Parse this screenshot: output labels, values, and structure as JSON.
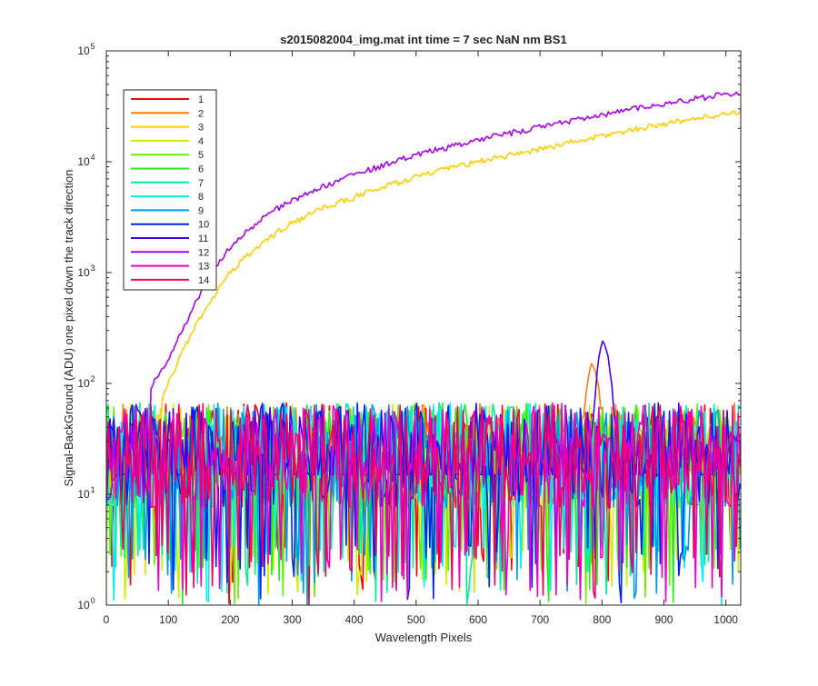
{
  "chart_data": {
    "type": "line",
    "title": "s2015082004_img.mat int time = 7 sec  NaN nm BS1",
    "xlabel": "Wavelength Pixels",
    "ylabel": "Signal-BackGround (ADU) one pixel down the track direction",
    "xlim": [
      0,
      1024
    ],
    "ylim": [
      1,
      100000
    ],
    "yscale": "log",
    "grid": false,
    "legend_position": "top-left",
    "x_ticks": [
      "0",
      "100",
      "200",
      "300",
      "400",
      "500",
      "600",
      "700",
      "800",
      "900",
      "1000"
    ],
    "x_tick_values": [
      0,
      100,
      200,
      300,
      400,
      500,
      600,
      700,
      800,
      900,
      1000
    ],
    "y_tick_exponents": [
      0,
      1,
      2,
      3,
      4,
      5
    ],
    "y_tick_base": "10",
    "series": [
      {
        "name": "1",
        "color": "#ff0000",
        "kind": "noise"
      },
      {
        "name": "2",
        "color": "#ff7f00",
        "kind": "noise",
        "peak": {
          "x": 785,
          "y": 160
        }
      },
      {
        "name": "3",
        "color": "#ffcc00",
        "kind": "signal",
        "x": [
          90,
          100,
          120,
          140,
          160,
          180,
          200,
          220,
          250,
          280,
          300,
          350,
          400,
          450,
          500,
          550,
          600,
          650,
          700,
          750,
          800,
          850,
          900,
          950,
          1000,
          1024
        ],
        "y": [
          70,
          100,
          180,
          300,
          480,
          700,
          1000,
          1300,
          1800,
          2400,
          2800,
          3800,
          4800,
          6000,
          7300,
          8600,
          10000,
          11500,
          13000,
          15000,
          17000,
          19500,
          22000,
          24500,
          27000,
          28500
        ]
      },
      {
        "name": "4",
        "color": "#ccee00",
        "kind": "noise"
      },
      {
        "name": "5",
        "color": "#66ee00",
        "kind": "noise"
      },
      {
        "name": "6",
        "color": "#22ee22",
        "kind": "noise"
      },
      {
        "name": "7",
        "color": "#00ee99",
        "kind": "noise"
      },
      {
        "name": "8",
        "color": "#00eeee",
        "kind": "noise"
      },
      {
        "name": "9",
        "color": "#0099ee",
        "kind": "noise"
      },
      {
        "name": "10",
        "color": "#0022ee",
        "kind": "noise"
      },
      {
        "name": "11",
        "color": "#4400ee",
        "kind": "noise",
        "peak": {
          "x": 803,
          "y": 250
        }
      },
      {
        "name": "12",
        "color": "#aa00ee",
        "kind": "signal",
        "x": [
          70,
          80,
          100,
          120,
          140,
          160,
          180,
          200,
          220,
          250,
          280,
          300,
          350,
          400,
          450,
          500,
          550,
          600,
          650,
          700,
          750,
          800,
          850,
          900,
          950,
          1000,
          1024
        ],
        "y": [
          90,
          110,
          170,
          280,
          480,
          780,
          1200,
          1700,
          2200,
          3000,
          3900,
          4500,
          6000,
          7600,
          9400,
          11500,
          13500,
          15800,
          18000,
          20500,
          23500,
          26500,
          30000,
          33500,
          37000,
          40500,
          42000
        ]
      },
      {
        "name": "13",
        "color": "#ee00cc",
        "kind": "noise"
      },
      {
        "name": "14",
        "color": "#ee0066",
        "kind": "noise"
      }
    ]
  }
}
